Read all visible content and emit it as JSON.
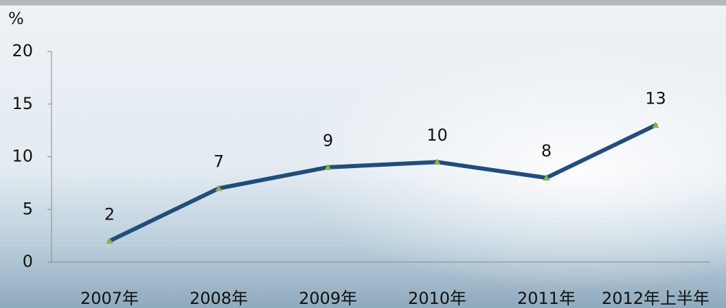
{
  "chart_data": {
    "type": "line",
    "unit_label": "%",
    "categories": [
      "2007年",
      "2008年",
      "2009年",
      "2010年",
      "2011年",
      "2012年上半年"
    ],
    "series": [
      {
        "color": "#1f4e7d",
        "marker_color": "#8db43a",
        "values": [
          2,
          7,
          9,
          9.5,
          8,
          13
        ],
        "value_labels": [
          "2",
          "7",
          "9",
          "10",
          "8",
          "13"
        ]
      }
    ],
    "ylim": [
      0,
      20
    ],
    "yticks": [
      0,
      5,
      10,
      15,
      20
    ]
  }
}
